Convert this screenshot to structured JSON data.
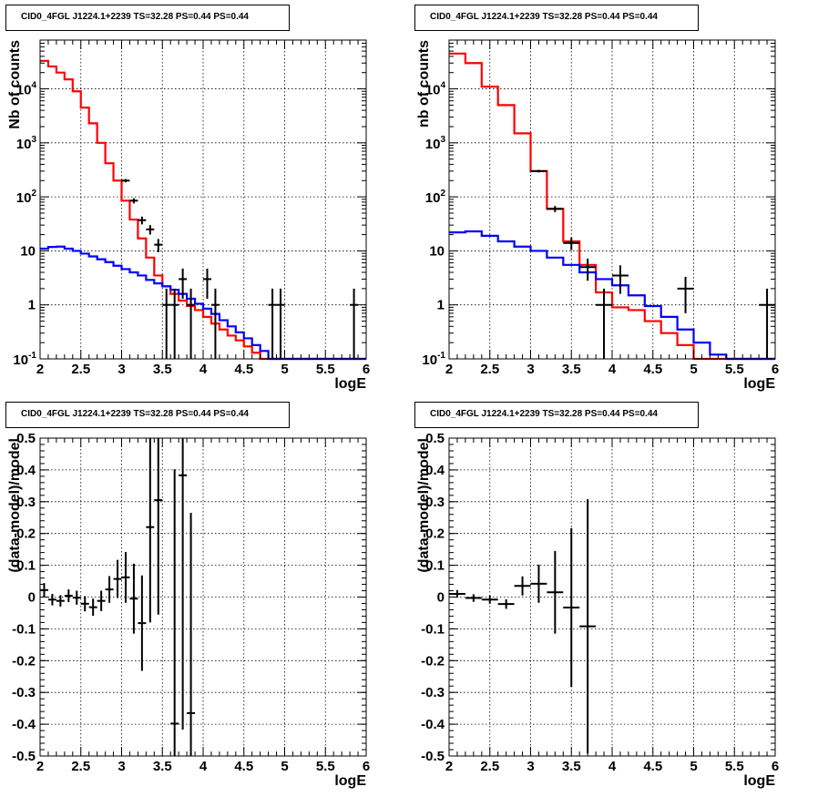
{
  "chart_data": [
    {
      "type": "line",
      "title": "CID0_4FGL J1224.1+2239 TS=32.28 PS=0.44 PS=0.44",
      "xlabel": "logE",
      "ylabel": "Nb of counts",
      "xlim": [
        2,
        6
      ],
      "ylim": [
        0.1,
        80000
      ],
      "yscale": "log",
      "grid": true,
      "xticks": [
        "2",
        "2.5",
        "3",
        "3.5",
        "4",
        "4.5",
        "5",
        "5.5",
        "6"
      ],
      "yticks": [
        {
          "v": 0.1,
          "label": "10^-1"
        },
        {
          "v": 1,
          "label": "1"
        },
        {
          "v": 10,
          "label": "10"
        },
        {
          "v": 100,
          "label": "10^2"
        },
        {
          "v": 1000,
          "label": "10^3"
        },
        {
          "v": 10000,
          "label": "10^4"
        }
      ],
      "bin_edges": [
        2,
        2.1,
        2.2,
        2.3,
        2.4,
        2.5,
        2.6,
        2.7,
        2.8,
        2.9,
        3.0,
        3.1,
        3.2,
        3.3,
        3.4,
        3.5,
        3.6,
        3.7,
        3.8,
        3.9,
        4.0,
        4.1,
        4.2,
        4.3,
        4.4,
        4.5,
        4.6,
        4.7,
        4.8,
        4.9,
        5.0,
        5.1,
        5.2,
        5.3,
        5.4,
        5.5,
        5.6,
        5.7,
        5.8,
        5.9,
        6.0
      ],
      "series": [
        {
          "style": "step",
          "color": "#ff0000",
          "values": [
            33000,
            26000,
            20000,
            15000,
            9000,
            4500,
            2300,
            1000,
            420,
            200,
            85,
            38,
            17,
            7.5,
            3.5,
            2.2,
            1.6,
            1.2,
            0.95,
            0.8,
            0.6,
            0.45,
            0.35,
            0.27,
            0.22,
            0.17,
            0.13,
            0.1,
            0.1,
            0.1,
            0.1,
            0.1,
            0.1,
            0.1,
            0.1,
            0.1,
            0.1,
            0.1,
            0.1,
            0.1
          ]
        },
        {
          "style": "step",
          "color": "#0000ff",
          "values": [
            11,
            11.8,
            12,
            11,
            10,
            8.9,
            7.9,
            7,
            6.2,
            5.3,
            4.6,
            4,
            3.5,
            2.9,
            2.5,
            2.2,
            1.9,
            1.6,
            1.3,
            1.05,
            0.85,
            0.68,
            0.52,
            0.4,
            0.31,
            0.24,
            0.18,
            0.14,
            0.1,
            0.1,
            0.1,
            0.1,
            0.1,
            0.1,
            0.1,
            0.1,
            0.1,
            0.1,
            0.1,
            0.1
          ]
        },
        {
          "style": "points",
          "color": "#000000",
          "x": [
            3.05,
            3.15,
            3.25,
            3.35,
            3.45,
            3.55,
            3.65,
            3.75,
            3.85,
            4.05,
            4.15,
            4.85,
            4.95,
            5.85
          ],
          "y": [
            200,
            85,
            37,
            25,
            13,
            1,
            1,
            3,
            1,
            3,
            1,
            1,
            1,
            1
          ],
          "elo": [
            14,
            9.2,
            6.1,
            5,
            3.6,
            0.9,
            0.9,
            1.7,
            0.9,
            1.7,
            0.9,
            0.9,
            0.9,
            0.9
          ],
          "ehi": [
            14,
            9.2,
            6.1,
            5,
            3.6,
            1,
            1,
            1.7,
            1,
            1.7,
            1,
            1,
            1,
            1
          ]
        }
      ]
    },
    {
      "type": "line",
      "title": "CID0_4FGL J1224.1+2239 TS=32.28 PS=0.44 PS=0.44",
      "xlabel": "logE",
      "ylabel": "nb of counts",
      "xlim": [
        2,
        6
      ],
      "ylim": [
        0.1,
        80000
      ],
      "yscale": "log",
      "grid": true,
      "xticks": [
        "2",
        "2.5",
        "3",
        "3.5",
        "4",
        "4.5",
        "5",
        "5.5",
        "6"
      ],
      "yticks": [
        {
          "v": 0.1,
          "label": "10^-1"
        },
        {
          "v": 1,
          "label": "1"
        },
        {
          "v": 10,
          "label": "10"
        },
        {
          "v": 100,
          "label": "10^2"
        },
        {
          "v": 1000,
          "label": "10^3"
        },
        {
          "v": 10000,
          "label": "10^4"
        }
      ],
      "bin_edges": [
        2,
        2.2,
        2.4,
        2.6,
        2.8,
        3.0,
        3.2,
        3.4,
        3.6,
        3.8,
        4.0,
        4.2,
        4.4,
        4.6,
        4.8,
        5.0,
        5.2,
        5.4,
        5.6,
        5.8,
        6.0
      ],
      "series": [
        {
          "style": "step",
          "color": "#ff0000",
          "values": [
            45000,
            30000,
            11000,
            5000,
            1500,
            300,
            60,
            15,
            5.5,
            1.7,
            0.9,
            0.8,
            0.5,
            0.3,
            0.18,
            0.1,
            0.1,
            0.1,
            0.1,
            0.1
          ]
        },
        {
          "style": "step",
          "color": "#0000ff",
          "values": [
            22,
            23,
            19,
            15,
            12,
            10,
            7.5,
            5.5,
            4,
            3,
            2.3,
            1.5,
            0.95,
            0.6,
            0.35,
            0.2,
            0.12,
            0.1,
            0.1,
            0.1
          ]
        },
        {
          "style": "points",
          "color": "#000000",
          "x": [
            3.1,
            3.3,
            3.5,
            3.7,
            3.9,
            4.1,
            4.9,
            5.9
          ],
          "y": [
            300,
            60,
            14,
            5,
            1,
            3.5,
            2,
            1
          ],
          "elo": [
            17,
            7.7,
            3.7,
            2.2,
            0.9,
            1.9,
            1.3,
            0.9
          ],
          "ehi": [
            17,
            7.7,
            3.7,
            2.2,
            1,
            1.9,
            1.3,
            1
          ]
        }
      ]
    },
    {
      "type": "scatter",
      "title": "CID0_4FGL J1224.1+2239 TS=32.28 PS=0.44 PS=0.44",
      "xlabel": "logE",
      "ylabel": "(data-model)/model",
      "xlim": [
        2,
        6
      ],
      "ylim": [
        -0.5,
        0.5
      ],
      "grid": true,
      "xticks": [
        "2",
        "2.5",
        "3",
        "3.5",
        "4",
        "4.5",
        "5",
        "5.5",
        "6"
      ],
      "yticks": [
        "-0.5",
        "-0.4",
        "-0.3",
        "-0.2",
        "-0.1",
        "0",
        "0.1",
        "0.2",
        "0.3",
        "0.4",
        "0.5"
      ],
      "x_halfwidth": 0.05,
      "x": [
        2.05,
        2.15,
        2.25,
        2.35,
        2.45,
        2.55,
        2.65,
        2.75,
        2.85,
        2.95,
        3.05,
        3.15,
        3.25,
        3.35,
        3.45,
        3.65,
        3.75,
        3.85
      ],
      "y": [
        0.022,
        -0.008,
        -0.012,
        0.004,
        -0.002,
        -0.021,
        -0.032,
        -0.012,
        0.024,
        0.057,
        0.062,
        -0.005,
        -0.082,
        0.22,
        0.305,
        -0.398,
        0.383,
        -0.365
      ],
      "err": [
        0.022,
        0.018,
        0.018,
        0.02,
        0.022,
        0.024,
        0.027,
        0.032,
        0.042,
        0.06,
        0.08,
        0.11,
        0.15,
        0.3,
        0.36,
        0.8,
        0.8,
        0.63
      ]
    },
    {
      "type": "scatter",
      "title": "CID0_4FGL J1224.1+2239 TS=32.28 PS=0.44 PS=0.44",
      "xlabel": "logE",
      "ylabel": "(data-model)/model",
      "xlim": [
        2,
        6
      ],
      "ylim": [
        -0.5,
        0.5
      ],
      "grid": true,
      "xticks": [
        "2",
        "2.5",
        "3",
        "3.5",
        "4",
        "4.5",
        "5",
        "5.5",
        "6"
      ],
      "yticks": [
        "-0.5",
        "-0.4",
        "-0.3",
        "-0.2",
        "-0.1",
        "0",
        "0.1",
        "0.2",
        "0.3",
        "0.4",
        "0.5"
      ],
      "x_halfwidth": 0.1,
      "x": [
        2.1,
        2.3,
        2.5,
        2.7,
        2.9,
        3.1,
        3.3,
        3.5,
        3.7
      ],
      "y": [
        0.01,
        -0.003,
        -0.008,
        -0.022,
        0.035,
        0.042,
        0.015,
        -0.033,
        -0.092
      ],
      "err": [
        0.012,
        0.012,
        0.013,
        0.015,
        0.03,
        0.06,
        0.13,
        0.25,
        0.4
      ]
    }
  ]
}
